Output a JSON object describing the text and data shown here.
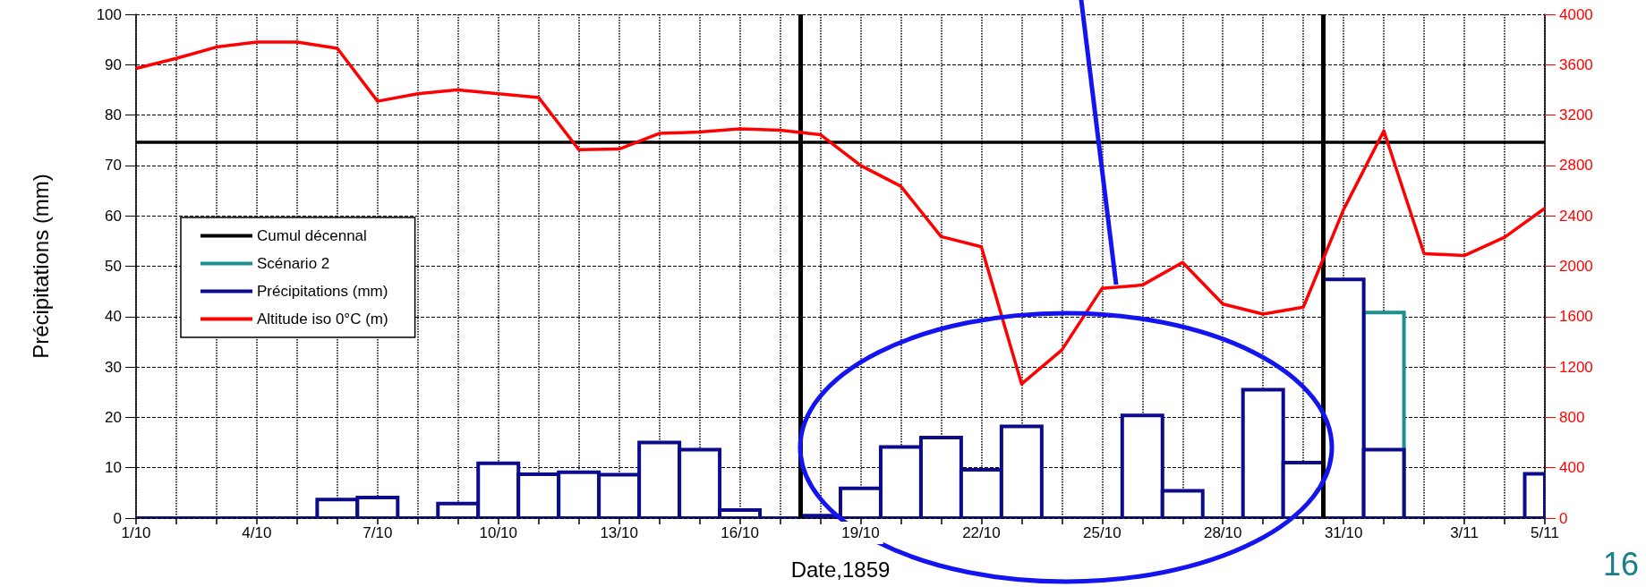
{
  "chart_data": {
    "type": "bar",
    "xlabel": "Date,1859",
    "ylabel": "Précipitations (mm)",
    "x": [
      "--10-01",
      "--10-02",
      "--10-03",
      "--10-04",
      "--10-05",
      "--10-06",
      "--10-07",
      "--10-08",
      "--10-09",
      "--10-10",
      "--10-11",
      "--10-12",
      "--10-13",
      "--10-14",
      "--10-15",
      "--10-16",
      "--10-17",
      "--10-18",
      "--10-19",
      "--10-20",
      "--10-21",
      "--10-22",
      "--10-23",
      "--10-24",
      "--10-25",
      "--10-26",
      "--10-27",
      "--10-28",
      "--10-29",
      "--10-30",
      "--10-31",
      "--11-01",
      "--11-02",
      "--11-03",
      "--11-04",
      "--11-05"
    ],
    "series": [
      {
        "name": "Cumul décennal",
        "type": "line",
        "color": "#000000",
        "values": [
          74.6,
          74.6,
          74.6,
          74.6,
          74.6,
          74.6,
          74.6,
          74.6,
          74.6,
          74.6,
          74.6,
          74.6,
          74.6,
          74.6,
          74.6,
          74.6,
          74.6,
          74.6,
          74.6,
          74.6,
          74.6,
          74.6,
          74.6,
          74.6,
          74.6,
          74.6,
          74.6,
          74.6,
          74.6,
          74.6,
          74.6,
          74.6,
          74.6,
          74.6,
          74.6,
          74.6
        ]
      },
      {
        "name": "Scénario 2",
        "color": "#1a9090",
        "values": [
          null,
          null,
          null,
          null,
          null,
          null,
          null,
          null,
          null,
          null,
          null,
          null,
          null,
          null,
          null,
          null,
          null,
          null,
          null,
          null,
          null,
          null,
          null,
          null,
          null,
          null,
          null,
          null,
          null,
          null,
          null,
          40.8,
          null,
          null,
          null,
          null
        ]
      },
      {
        "name": "Précipitations (mm)",
        "color": "#0b0b8c",
        "values": [
          0,
          0,
          0,
          0,
          0,
          3.7,
          4.1,
          0,
          2.9,
          10.9,
          8.7,
          9.1,
          8.6,
          15.0,
          13.6,
          1.6,
          0,
          0.5,
          5.9,
          14.1,
          16.0,
          9.6,
          18.2,
          0,
          0,
          20.4,
          5.4,
          0,
          25.5,
          11.0,
          47.4,
          13.6,
          0,
          0,
          0,
          8.8
        ]
      },
      {
        "name": "Altitude iso 0°C (m)",
        "type": "line",
        "axis": "y2",
        "color": "#ff0000",
        "values": [
          3570,
          3650,
          3740,
          3780,
          3780,
          3730,
          3310,
          3370,
          3400,
          3370,
          3340,
          2925,
          2930,
          3055,
          3065,
          3090,
          3080,
          3045,
          2800,
          2635,
          2235,
          2155,
          1065,
          1335,
          1825,
          1850,
          2030,
          1700,
          1620,
          1675,
          2450,
          3075,
          2100,
          2085,
          2230,
          2460
        ]
      }
    ],
    "xlim": [
      "--10-01",
      "--11-05"
    ],
    "xticks": [
      {
        "value": "--10-01",
        "label": "1/10"
      },
      {
        "value": "--10-02",
        "label": null
      },
      {
        "value": "--10-03",
        "label": null
      },
      {
        "value": "--10-04",
        "label": "4/10"
      },
      {
        "value": "--10-05",
        "label": null
      },
      {
        "value": "--10-06",
        "label": null
      },
      {
        "value": "--10-07",
        "label": "7/10"
      },
      {
        "value": "--10-08",
        "label": null
      },
      {
        "value": "--10-09",
        "label": null
      },
      {
        "value": "--10-10",
        "label": "10/10"
      },
      {
        "value": "--10-11",
        "label": null
      },
      {
        "value": "--10-12",
        "label": null
      },
      {
        "value": "--10-13",
        "label": "13/10"
      },
      {
        "value": "--10-14",
        "label": null
      },
      {
        "value": "--10-15",
        "label": null
      },
      {
        "value": "--10-16",
        "label": "16/10"
      },
      {
        "value": "--10-17",
        "label": null
      },
      {
        "value": "--10-18",
        "label": null
      },
      {
        "value": "--10-19",
        "label": "19/10"
      },
      {
        "value": "--10-20",
        "label": null
      },
      {
        "value": "--10-21",
        "label": null
      },
      {
        "value": "--10-22",
        "label": "22/10"
      },
      {
        "value": "--10-23",
        "label": null
      },
      {
        "value": "--10-24",
        "label": null
      },
      {
        "value": "--10-25",
        "label": "25/10"
      },
      {
        "value": "--10-26",
        "label": null
      },
      {
        "value": "--10-27",
        "label": null
      },
      {
        "value": "--10-28",
        "label": "28/10"
      },
      {
        "value": "--10-29",
        "label": null
      },
      {
        "value": "--10-30",
        "label": null
      },
      {
        "value": "--10-31",
        "label": "31/10"
      },
      {
        "value": "--11-01",
        "label": null
      },
      {
        "value": "--11-02",
        "label": null
      },
      {
        "value": "--11-03",
        "label": "3/11"
      },
      {
        "value": "--11-04",
        "label": null
      },
      {
        "value": "--11-05",
        "label": "5/11"
      }
    ],
    "ylim": [
      0,
      100
    ],
    "yticks": [
      0,
      10,
      20,
      30,
      40,
      50,
      60,
      70,
      80,
      90,
      100
    ],
    "y2lim": [
      0,
      4000
    ],
    "y2ticks": [
      0,
      400,
      800,
      1200,
      1600,
      2000,
      2400,
      2800,
      3200,
      3600,
      4000
    ],
    "ref_lines": [
      {
        "axis": "x",
        "value": "--10-17T12:00",
        "color": "#000000"
      },
      {
        "axis": "x",
        "value": "--10-30T12:00",
        "color": "#000000"
      }
    ],
    "annotations": [
      "16"
    ],
    "grid": true,
    "legend": "left",
    "marker": "none",
    "line_style": "solid"
  }
}
